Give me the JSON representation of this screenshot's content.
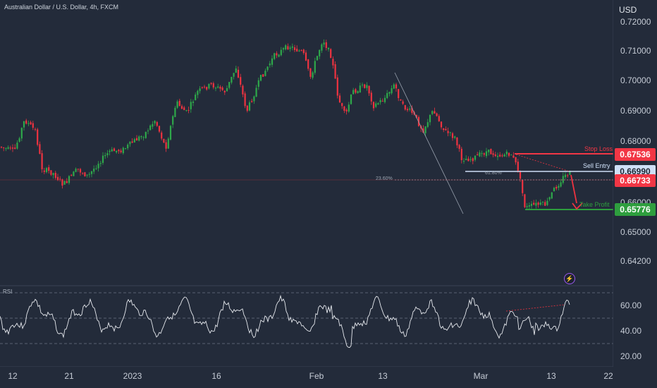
{
  "header": {
    "symbol_title": "Australian Dollar / U.S. Dollar, 4h, FXCM",
    "currency": "USD"
  },
  "price_axis": {
    "labels": [
      "0.72000",
      "0.71000",
      "0.70000",
      "0.69000",
      "0.68000",
      "0.66990",
      "0.66000",
      "0.65000",
      "0.64200"
    ],
    "stop_loss_value": "0.67536",
    "current_value": "0.66733",
    "take_profit_value": "0.65776"
  },
  "annotations": {
    "stop_loss": "Stop Loss",
    "sell_entry": "Sell Entry",
    "take_profit": "Take Profit",
    "fib_618": "61.80%",
    "fib_236": "23.60%"
  },
  "rsi": {
    "label": "RSI",
    "levels": [
      "60.00",
      "40.00",
      "20.00"
    ]
  },
  "time_axis": {
    "labels": [
      "12",
      "21",
      "2023",
      "16",
      "Feb",
      "13",
      "Mar",
      "13",
      "22"
    ]
  },
  "colors": {
    "background": "#232b3a",
    "bull": "#2ea84a",
    "bear": "#ef3340",
    "stop_loss": "#f23645",
    "take_profit": "#2e9e3e",
    "sell_entry": "#cfe0f7"
  },
  "icons": {
    "flash": "lightning-icon"
  }
}
